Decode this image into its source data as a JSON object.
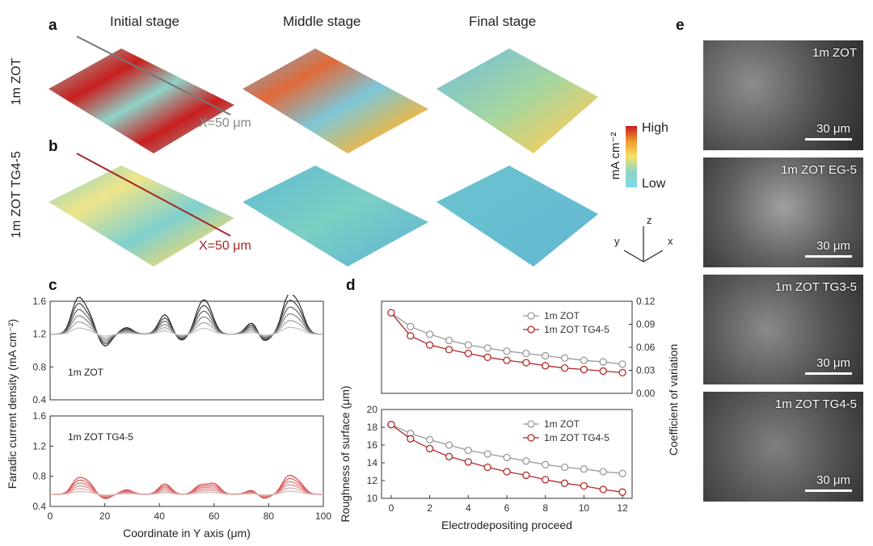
{
  "panel_labels": {
    "a": "a",
    "b": "b",
    "c": "c",
    "d": "d",
    "e": "e"
  },
  "stages": [
    "Initial stage",
    "Middle stage",
    "Final stage"
  ],
  "row_labels": [
    "1m ZOT",
    "1m ZOT TG4-5"
  ],
  "cross_section_labels": {
    "a": "X=50 μm",
    "b": "X=50 μm"
  },
  "colorbar": {
    "high": "High",
    "low": "Low",
    "unit": "mA cm⁻²",
    "colors": [
      "#c81e1e",
      "#f29a2e",
      "#f2e36a",
      "#8fd3c9",
      "#7ddbe6"
    ]
  },
  "axes_triad": {
    "x": "x",
    "y": "y",
    "z": "z"
  },
  "sem_images": [
    {
      "label": "1m ZOT",
      "scale": "30 μm"
    },
    {
      "label": "1m ZOT EG-5",
      "scale": "30 μm"
    },
    {
      "label": "1m ZOT TG3-5",
      "scale": "30 μm"
    },
    {
      "label": "1m ZOT TG4-5",
      "scale": "30 μm"
    }
  ],
  "chart_data": [
    {
      "id": "c",
      "type": "line",
      "title": "",
      "xlabel": "Coordinate in Y axis (μm)",
      "ylabel": "Faradic current density (mA cm⁻²)",
      "xlim": [
        0,
        100
      ],
      "ylim": [
        0.4,
        1.6
      ],
      "xticks": [
        0,
        20,
        40,
        60,
        80,
        100
      ],
      "yticks": [
        0.4,
        0.8,
        1.2,
        1.6
      ],
      "subplots": [
        {
          "name": "1m ZOT",
          "color": "#222222",
          "baseline": 1.2,
          "peaks": [
            {
              "x": 10,
              "y": 1.6
            },
            {
              "x": 14,
              "y": 1.42
            },
            {
              "x": 28,
              "y": 1.28
            },
            {
              "x": 42,
              "y": 1.44
            },
            {
              "x": 55,
              "y": 1.48
            },
            {
              "x": 58,
              "y": 1.45
            },
            {
              "x": 74,
              "y": 1.35
            },
            {
              "x": 87,
              "y": 1.62
            },
            {
              "x": 91,
              "y": 1.5
            }
          ],
          "valleys": [
            {
              "x": 20,
              "y": 1.05
            },
            {
              "x": 48,
              "y": 1.12
            },
            {
              "x": 78,
              "y": 1.1
            }
          ]
        },
        {
          "name": "1m ZOT TG4-5",
          "color": "#d94040",
          "baseline": 0.56,
          "peaks": [
            {
              "x": 10,
              "y": 0.75
            },
            {
              "x": 14,
              "y": 0.7
            },
            {
              "x": 28,
              "y": 0.62
            },
            {
              "x": 42,
              "y": 0.7
            },
            {
              "x": 55,
              "y": 0.68
            },
            {
              "x": 60,
              "y": 0.7
            },
            {
              "x": 74,
              "y": 0.62
            },
            {
              "x": 87,
              "y": 0.78
            },
            {
              "x": 91,
              "y": 0.7
            }
          ],
          "valleys": [
            {
              "x": 20,
              "y": 0.5
            },
            {
              "x": 78,
              "y": 0.5
            }
          ]
        }
      ]
    },
    {
      "id": "d-top",
      "type": "line",
      "xlabel": "Electrodepositing proceed",
      "ylabel": "Coefficient of variation",
      "xlim": [
        -0.5,
        12.5
      ],
      "ylim": [
        0,
        0.12
      ],
      "yticks": [
        0.0,
        0.03,
        0.06,
        0.09,
        0.12
      ],
      "legend_position": "top-right",
      "x": [
        0,
        1,
        2,
        3,
        4,
        5,
        6,
        7,
        8,
        9,
        10,
        11,
        12
      ],
      "series": [
        {
          "name": "1m ZOT",
          "color": "#9a9a9a",
          "values": [
            0.105,
            0.087,
            0.077,
            0.069,
            0.063,
            0.059,
            0.055,
            0.052,
            0.049,
            0.046,
            0.043,
            0.041,
            0.038
          ]
        },
        {
          "name": "1m ZOT TG4-5",
          "color": "#b22a2a",
          "values": [
            0.105,
            0.075,
            0.063,
            0.057,
            0.052,
            0.047,
            0.043,
            0.04,
            0.036,
            0.033,
            0.031,
            0.029,
            0.027
          ]
        }
      ]
    },
    {
      "id": "d-bottom",
      "type": "line",
      "xlabel": "Electrodepositing proceed",
      "ylabel": "Roughness of surface (μm)",
      "xlim": [
        -0.5,
        12.5
      ],
      "ylim": [
        10,
        20
      ],
      "yticks": [
        10,
        12,
        14,
        16,
        18,
        20
      ],
      "xticks": [
        0,
        2,
        4,
        6,
        8,
        10,
        12
      ],
      "legend_position": "top-right",
      "x": [
        0,
        1,
        2,
        3,
        4,
        5,
        6,
        7,
        8,
        9,
        10,
        11,
        12
      ],
      "series": [
        {
          "name": "1m ZOT",
          "color": "#9a9a9a",
          "values": [
            18.3,
            17.3,
            16.6,
            16.0,
            15.4,
            15.0,
            14.6,
            14.2,
            13.8,
            13.5,
            13.3,
            13.0,
            12.8
          ]
        },
        {
          "name": "1m ZOT TG4-5",
          "color": "#b22a2a",
          "values": [
            18.3,
            16.7,
            15.6,
            14.7,
            14.1,
            13.5,
            13.0,
            12.6,
            12.1,
            11.7,
            11.4,
            11.0,
            10.7
          ]
        }
      ]
    }
  ]
}
